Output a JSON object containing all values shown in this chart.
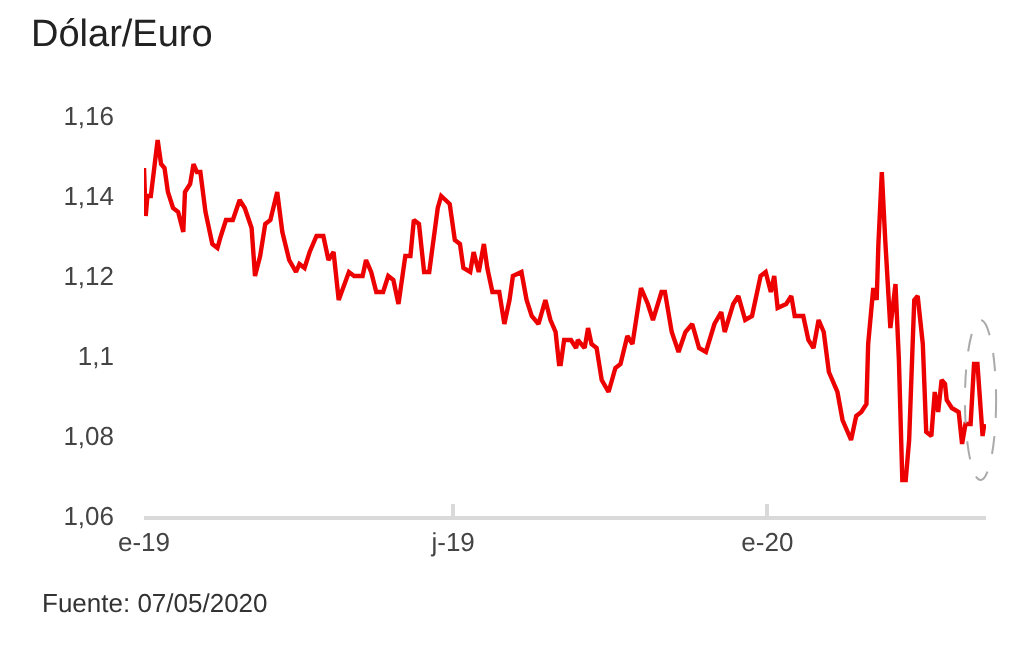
{
  "chart_data": {
    "type": "line",
    "title": "Dólar/Euro",
    "annotations": [
      "Fuente: 07/05/2020"
    ],
    "xlim": [
      "2019-01-01",
      "2020-05-08"
    ],
    "xticks": [
      {
        "value": "2019-01-01",
        "label": "e-19"
      },
      {
        "value": "2019-07-01",
        "label": "j-19"
      },
      {
        "value": "2020-01-01",
        "label": "e-20"
      }
    ],
    "ylim": [
      1.06,
      1.16
    ],
    "yticks": [
      {
        "value": 1.06,
        "label": "1,06"
      },
      {
        "value": 1.08,
        "label": "1,08"
      },
      {
        "value": 1.1,
        "label": "1,1"
      },
      {
        "value": 1.12,
        "label": "1,12"
      },
      {
        "value": 1.14,
        "label": "1,14"
      },
      {
        "value": 1.16,
        "label": "1,16"
      }
    ],
    "marker": "none",
    "line_style": "solid",
    "x": [
      "2019-01-01",
      "2019-01-02",
      "2019-01-03",
      "2019-01-05",
      "2019-01-07",
      "2019-01-09",
      "2019-01-11",
      "2019-01-13",
      "2019-01-15",
      "2019-01-18",
      "2019-01-21",
      "2019-01-24",
      "2019-01-25",
      "2019-01-28",
      "2019-01-30",
      "2019-02-01",
      "2019-02-03",
      "2019-02-06",
      "2019-02-10",
      "2019-02-13",
      "2019-02-15",
      "2019-02-18",
      "2019-02-22",
      "2019-02-26",
      "2019-03-01",
      "2019-03-05",
      "2019-03-07",
      "2019-03-10",
      "2019-03-13",
      "2019-03-16",
      "2019-03-20",
      "2019-03-23",
      "2019-03-27",
      "2019-03-31",
      "2019-04-02",
      "2019-04-05",
      "2019-04-08",
      "2019-04-12",
      "2019-04-16",
      "2019-04-19",
      "2019-04-22",
      "2019-04-25",
      "2019-05-01",
      "2019-05-04",
      "2019-05-09",
      "2019-05-11",
      "2019-05-14",
      "2019-05-17",
      "2019-05-21",
      "2019-05-24",
      "2019-05-27",
      "2019-05-30",
      "2019-06-03",
      "2019-06-06",
      "2019-06-08",
      "2019-06-11",
      "2019-06-14",
      "2019-06-17",
      "2019-06-22",
      "2019-06-24",
      "2019-06-29",
      "2019-07-02",
      "2019-07-05",
      "2019-07-07",
      "2019-07-11",
      "2019-07-13",
      "2019-07-16",
      "2019-07-19",
      "2019-07-21",
      "2019-07-24",
      "2019-07-28",
      "2019-07-31",
      "2019-08-03",
      "2019-08-05",
      "2019-08-10",
      "2019-08-13",
      "2019-08-16",
      "2019-08-20",
      "2019-08-24",
      "2019-08-27",
      "2019-08-30",
      "2019-09-01",
      "2019-09-02",
      "2019-09-04",
      "2019-09-08",
      "2019-09-11",
      "2019-09-12",
      "2019-09-16",
      "2019-09-18",
      "2019-09-20",
      "2019-09-23",
      "2019-09-26",
      "2019-09-30",
      "2019-10-04",
      "2019-10-07",
      "2019-10-11",
      "2019-10-14",
      "2019-10-19",
      "2019-10-23",
      "2019-10-26",
      "2019-10-31",
      "2019-11-02",
      "2019-11-06",
      "2019-11-10",
      "2019-11-14",
      "2019-11-18",
      "2019-11-22",
      "2019-11-26",
      "2019-12-01",
      "2019-12-05",
      "2019-12-07",
      "2019-12-12",
      "2019-12-15",
      "2019-12-19",
      "2019-12-23",
      "2019-12-28",
      "2019-12-31",
      "2020-01-03",
      "2020-01-05",
      "2020-01-07",
      "2020-01-12",
      "2020-01-15",
      "2020-01-17",
      "2020-01-22",
      "2020-01-25",
      "2020-01-28",
      "2020-01-31",
      "2020-02-03",
      "2020-02-06",
      "2020-02-11",
      "2020-02-14",
      "2020-02-19",
      "2020-02-22",
      "2020-02-25",
      "2020-02-28",
      "2020-02-29",
      "2020-03-03",
      "2020-03-05",
      "2020-03-06",
      "2020-03-08",
      "2020-03-10",
      "2020-03-13",
      "2020-03-16",
      "2020-03-18",
      "2020-03-20",
      "2020-03-22",
      "2020-03-24",
      "2020-03-27",
      "2020-03-29",
      "2020-04-01",
      "2020-04-03",
      "2020-04-06",
      "2020-04-08",
      "2020-04-10",
      "2020-04-12",
      "2020-04-14",
      "2020-04-15",
      "2020-04-18",
      "2020-04-22",
      "2020-04-24",
      "2020-04-26",
      "2020-04-29",
      "2020-05-01",
      "2020-05-03",
      "2020-05-05",
      "2020-05-06",
      "2020-05-07"
    ],
    "series": [
      {
        "color": "#ec0000",
        "values": [
          1.147,
          1.135,
          1.14,
          1.14,
          1.147,
          1.154,
          1.148,
          1.147,
          1.141,
          1.137,
          1.136,
          1.131,
          1.141,
          1.143,
          1.148,
          1.146,
          1.146,
          1.136,
          1.128,
          1.127,
          1.13,
          1.134,
          1.134,
          1.139,
          1.137,
          1.132,
          1.12,
          1.125,
          1.133,
          1.134,
          1.141,
          1.131,
          1.124,
          1.121,
          1.123,
          1.122,
          1.126,
          1.13,
          1.13,
          1.124,
          1.126,
          1.114,
          1.121,
          1.12,
          1.12,
          1.124,
          1.121,
          1.116,
          1.116,
          1.12,
          1.119,
          1.113,
          1.125,
          1.125,
          1.134,
          1.133,
          1.121,
          1.121,
          1.137,
          1.14,
          1.138,
          1.129,
          1.128,
          1.122,
          1.121,
          1.126,
          1.121,
          1.128,
          1.122,
          1.116,
          1.116,
          1.108,
          1.114,
          1.12,
          1.121,
          1.114,
          1.11,
          1.108,
          1.114,
          1.109,
          1.106,
          1.098,
          1.098,
          1.104,
          1.104,
          1.102,
          1.104,
          1.102,
          1.107,
          1.103,
          1.102,
          1.094,
          1.091,
          1.097,
          1.098,
          1.105,
          1.103,
          1.117,
          1.113,
          1.109,
          1.116,
          1.116,
          1.106,
          1.101,
          1.106,
          1.108,
          1.102,
          1.101,
          1.108,
          1.111,
          1.106,
          1.113,
          1.115,
          1.109,
          1.11,
          1.12,
          1.121,
          1.116,
          1.12,
          1.112,
          1.113,
          1.115,
          1.11,
          1.11,
          1.104,
          1.102,
          1.109,
          1.106,
          1.096,
          1.091,
          1.084,
          1.079,
          1.085,
          1.086,
          1.088,
          1.103,
          1.117,
          1.114,
          1.128,
          1.146,
          1.129,
          1.107,
          1.118,
          1.099,
          1.069,
          1.069,
          1.079,
          1.114,
          1.115,
          1.103,
          1.081,
          1.08,
          1.091,
          1.086,
          1.094,
          1.093,
          1.089,
          1.087,
          1.086,
          1.078,
          1.083,
          1.083,
          1.098,
          1.098,
          1.086,
          1.08,
          1.083
        ]
      }
    ]
  }
}
